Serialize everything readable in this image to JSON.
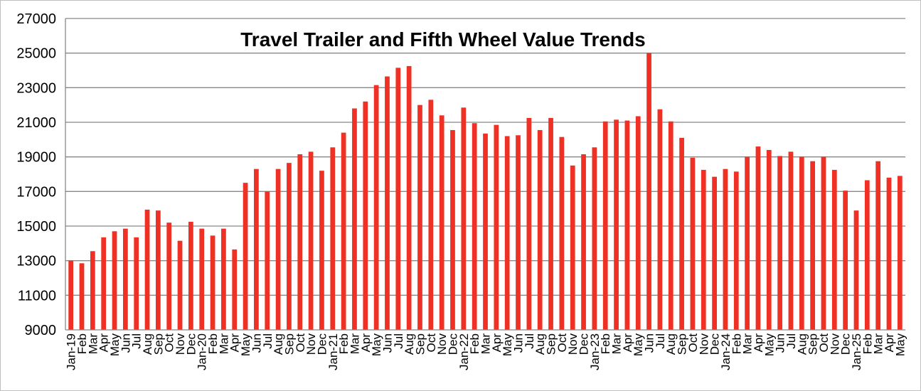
{
  "chart_data": {
    "type": "bar",
    "title": "Travel Trailer and Fifth Wheel Value Trends",
    "xlabel": "",
    "ylabel": "",
    "ylim": [
      9000,
      27000
    ],
    "yticks": [
      9000,
      11000,
      13000,
      15000,
      17000,
      19000,
      21000,
      23000,
      25000,
      27000
    ],
    "grid": true,
    "legend": "none",
    "bar_color": "#ee3124",
    "categories": [
      "Jan-19",
      "Feb",
      "Mar",
      "Apr",
      "May",
      "Jun",
      "Jul",
      "Aug",
      "Sep",
      "Oct",
      "Nov",
      "Dec",
      "Jan-20",
      "Feb",
      "Mar",
      "Apr",
      "May",
      "Jun",
      "Jul",
      "Aug",
      "Sep",
      "Oct",
      "Nov",
      "Dec",
      "Jan-21",
      "Feb",
      "Mar",
      "Apr",
      "May",
      "Jun",
      "Jul",
      "Aug",
      "Sep",
      "Oct",
      "Nov",
      "Dec",
      "Jan-22",
      "Feb",
      "Mar",
      "Apr",
      "May",
      "Jun",
      "Jul",
      "Aug",
      "Sep",
      "Oct",
      "Nov",
      "Dec",
      "Jan-23",
      "Feb",
      "Mar",
      "Apr",
      "May",
      "Jun",
      "Jul",
      "Aug",
      "Sep",
      "Oct",
      "Nov",
      "Dec",
      "Jan-24",
      "Feb",
      "Mar",
      "Apr",
      "May",
      "Jun",
      "Jul",
      "Aug",
      "Sep",
      "Oct",
      "Nov",
      "Dec",
      "Jan-25",
      "Feb",
      "Mar",
      "Apr",
      "May"
    ],
    "values": [
      13000,
      12850,
      13550,
      14350,
      14700,
      14850,
      14350,
      15950,
      15900,
      15200,
      14150,
      15250,
      14850,
      14450,
      14850,
      13650,
      17500,
      18300,
      17000,
      18300,
      18650,
      19150,
      19300,
      18200,
      19550,
      20400,
      21800,
      22200,
      23150,
      23650,
      24150,
      24250,
      22000,
      22300,
      21400,
      20550,
      21850,
      20950,
      20350,
      20850,
      20200,
      20250,
      21250,
      20550,
      21250,
      20150,
      18500,
      19150,
      19550,
      21050,
      21150,
      21100,
      21350,
      25000,
      21750,
      21050,
      20100,
      18950,
      18250,
      17850,
      18300,
      18150,
      19000,
      19600,
      19400,
      19050,
      19300,
      19000,
      18750,
      19000,
      18250,
      17050,
      15900,
      17650,
      18750,
      17800,
      17900
    ]
  }
}
